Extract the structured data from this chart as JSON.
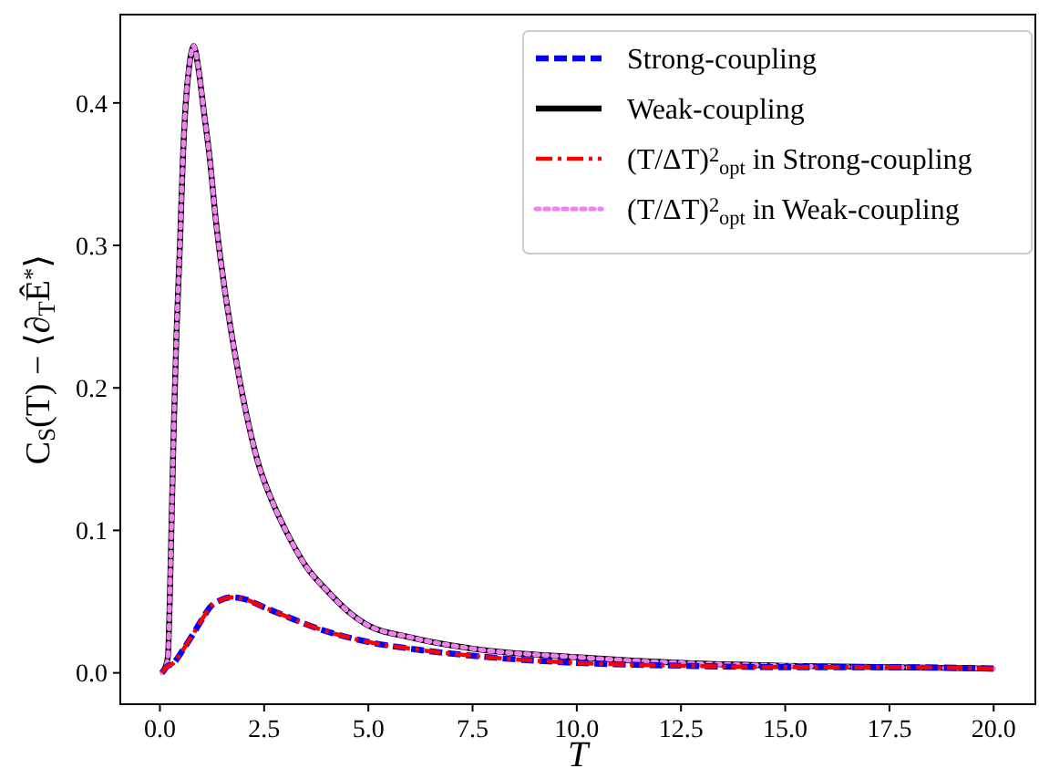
{
  "chart_data": {
    "type": "line",
    "xlabel": "T",
    "ylabel": "C$_{S}$(T) − ⟨∂$_{T}$Ê$^{*}$⟩",
    "xlim": [
      -0.95,
      21.0
    ],
    "ylim": [
      -0.022,
      0.462
    ],
    "xticks": [
      {
        "value": 0,
        "label": "0.0"
      },
      {
        "value": 2.5,
        "label": "2.5"
      },
      {
        "value": 5,
        "label": "5.0"
      },
      {
        "value": 7.5,
        "label": "7.5"
      },
      {
        "value": 10,
        "label": "10.0"
      },
      {
        "value": 12.5,
        "label": "12.5"
      },
      {
        "value": 15,
        "label": "15.0"
      },
      {
        "value": 17.5,
        "label": "17.5"
      },
      {
        "value": 20,
        "label": "20.0"
      }
    ],
    "yticks": [
      {
        "value": 0,
        "label": "0.0"
      },
      {
        "value": 0.1,
        "label": "0.1"
      },
      {
        "value": 0.2,
        "label": "0.2"
      },
      {
        "value": 0.3,
        "label": "0.3"
      },
      {
        "value": 0.4,
        "label": "0.4"
      }
    ],
    "grid": false,
    "legend": "top right",
    "marker": "none",
    "series": [
      {
        "name": "Strong-coupling",
        "color": "#0000ff",
        "line_style": "dashed",
        "x": [
          0.05,
          0.15,
          0.33,
          0.55,
          0.77,
          1.0,
          1.2,
          1.45,
          1.7,
          2.0,
          2.5,
          3.0,
          3.8,
          4.95,
          6.0,
          7.5,
          10,
          12.5,
          15,
          17.5,
          20
        ],
        "values": [
          0,
          0.004,
          0.007,
          0.016,
          0.026,
          0.037,
          0.046,
          0.051,
          0.053,
          0.052,
          0.046,
          0.04,
          0.031,
          0.022,
          0.017,
          0.012,
          0.007,
          0.005,
          0.004,
          0.004,
          0.003
        ]
      },
      {
        "name": "Weak-coupling",
        "color": "#000000",
        "line_style": "solid",
        "x": [
          0.05,
          0.12,
          0.19,
          0.26,
          0.33,
          0.4,
          0.48,
          0.55,
          0.62,
          0.7,
          0.81,
          0.92,
          1.05,
          1.2,
          1.34,
          1.55,
          1.77,
          2.05,
          2.35,
          2.7,
          3.07,
          3.5,
          4.0,
          4.52,
          4.95,
          6.0,
          7.5,
          10,
          12.5,
          15,
          17.5,
          20
        ],
        "values": [
          0,
          0.003,
          0.011,
          0.08,
          0.17,
          0.24,
          0.3,
          0.36,
          0.4,
          0.425,
          0.44,
          0.425,
          0.395,
          0.36,
          0.318,
          0.27,
          0.229,
          0.185,
          0.148,
          0.12,
          0.097,
          0.075,
          0.058,
          0.043,
          0.034,
          0.025,
          0.017,
          0.011,
          0.007,
          0.005,
          0.004,
          0.003
        ]
      },
      {
        "name": "(T/ΔT)$^{2}$$_{opt}$ in Strong-coupling",
        "color": "#ff0000",
        "line_style": "dashdot",
        "x": [
          0.05,
          0.15,
          0.33,
          0.55,
          0.77,
          1.0,
          1.2,
          1.45,
          1.7,
          2.0,
          2.5,
          3.0,
          3.8,
          4.95,
          6.0,
          7.5,
          10,
          12.5,
          15,
          17.5,
          20
        ],
        "values": [
          0,
          0.004,
          0.007,
          0.016,
          0.026,
          0.037,
          0.046,
          0.051,
          0.053,
          0.052,
          0.046,
          0.04,
          0.031,
          0.022,
          0.017,
          0.012,
          0.007,
          0.005,
          0.004,
          0.004,
          0.003
        ]
      },
      {
        "name": "(T/ΔT)$^{2}$$_{opt}$ in Weak-coupling",
        "color": "#ee82ee",
        "line_style": "dotted",
        "x": [
          0.05,
          0.12,
          0.19,
          0.26,
          0.33,
          0.4,
          0.48,
          0.55,
          0.62,
          0.7,
          0.81,
          0.92,
          1.05,
          1.2,
          1.34,
          1.55,
          1.77,
          2.05,
          2.35,
          2.7,
          3.07,
          3.5,
          4.0,
          4.52,
          4.95,
          6.0,
          7.5,
          10,
          12.5,
          15,
          17.5,
          20
        ],
        "values": [
          0,
          0.003,
          0.011,
          0.08,
          0.17,
          0.24,
          0.3,
          0.36,
          0.4,
          0.425,
          0.44,
          0.425,
          0.395,
          0.36,
          0.318,
          0.27,
          0.229,
          0.185,
          0.148,
          0.12,
          0.097,
          0.075,
          0.058,
          0.043,
          0.034,
          0.025,
          0.017,
          0.011,
          0.007,
          0.005,
          0.004,
          0.003
        ]
      }
    ]
  }
}
